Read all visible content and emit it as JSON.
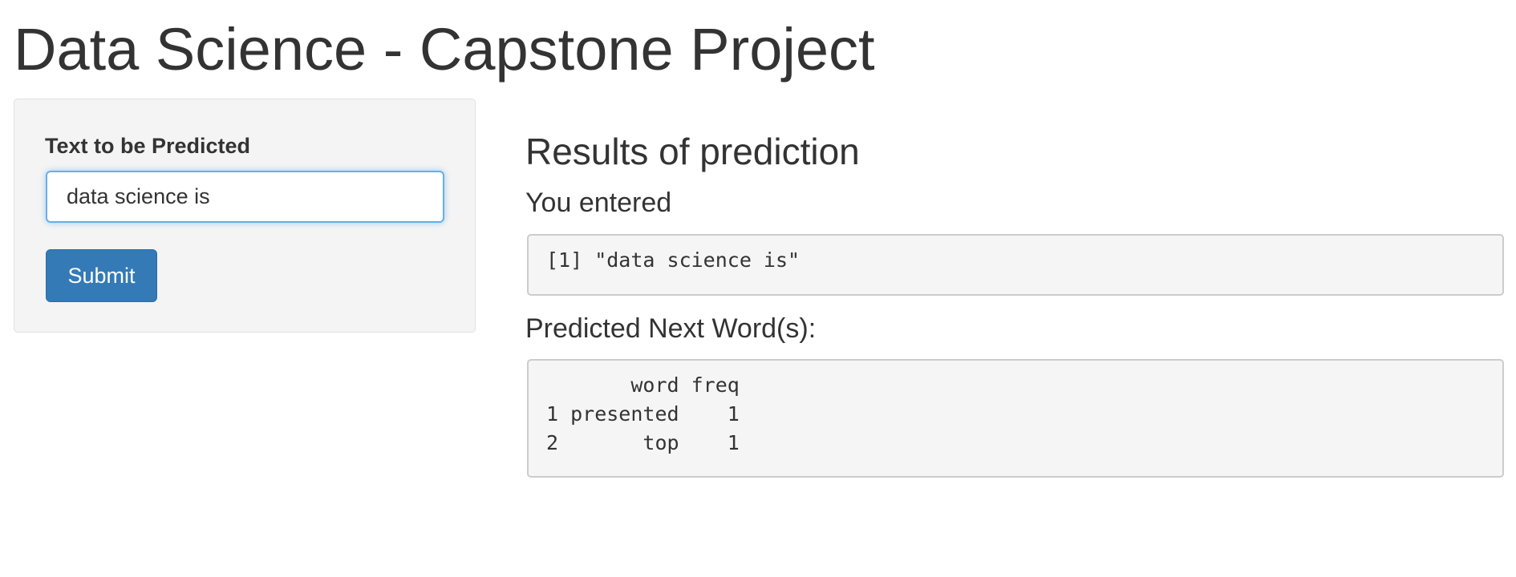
{
  "header": {
    "title": "Data Science - Capstone Project"
  },
  "sidebar": {
    "label": "Text to be Predicted",
    "input_value": "data science is",
    "button": "Submit"
  },
  "main": {
    "heading": "Results of prediction",
    "entered_heading": "You entered",
    "entered_output": "[1] \"data science is\"",
    "predicted_heading": "Predicted Next Word(s):",
    "predicted_output": [
      "       word freq",
      "1 presented    1",
      "2       top    1"
    ]
  }
}
